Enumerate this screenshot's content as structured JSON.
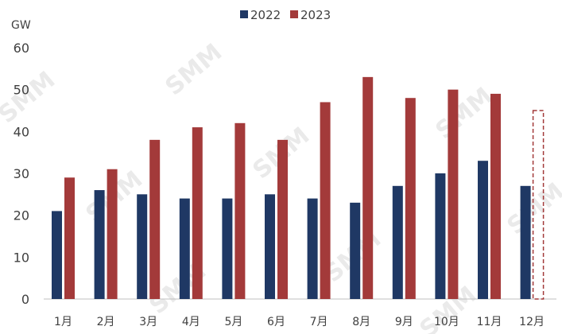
{
  "chart_data": {
    "type": "bar",
    "unit_label": "GW",
    "categories": [
      "1月",
      "2月",
      "3月",
      "4月",
      "5月",
      "6月",
      "7月",
      "8月",
      "9月",
      "10月",
      "11月",
      "12月"
    ],
    "series": [
      {
        "name": "2022",
        "color": "#1f3864",
        "values": [
          21,
          26,
          25,
          24,
          24,
          25,
          24,
          23,
          27,
          30,
          33,
          27
        ]
      },
      {
        "name": "2023",
        "color": "#a33a3a",
        "values": [
          29,
          31,
          38,
          41,
          42,
          38,
          47,
          53,
          48,
          50,
          49,
          null
        ]
      }
    ],
    "forecast_placeholder": {
      "category": "12月",
      "series": "2023",
      "value": 45,
      "style": "dashed-outline"
    },
    "ylim": [
      0,
      60
    ],
    "yticks": [
      0,
      10,
      20,
      30,
      40,
      50,
      60
    ],
    "legend_position": "top-center",
    "grid": false,
    "watermark": "SMM"
  }
}
